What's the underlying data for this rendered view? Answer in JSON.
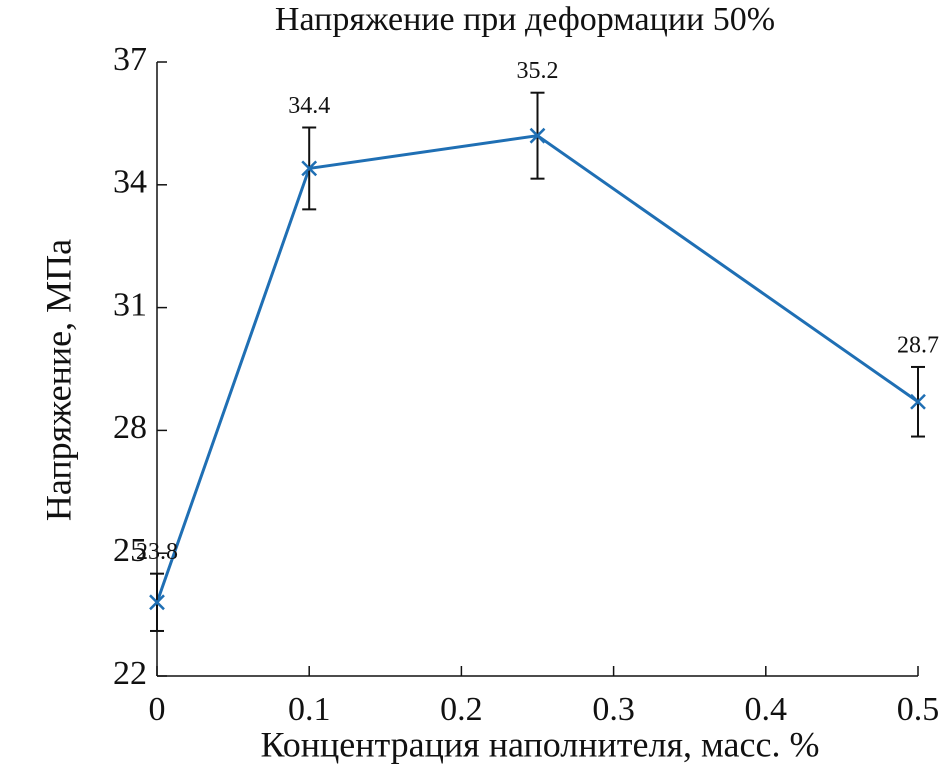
{
  "chart_data": {
    "type": "line",
    "title": "Напряжение при деформации 50%",
    "x_label": "Концентрация наполнителя, масс. %",
    "y_label": "Напряжение, МПа",
    "x": [
      0,
      0.1,
      0.25,
      0.5
    ],
    "values": [
      23.8,
      34.4,
      35.2,
      28.7
    ],
    "errors": [
      0.7,
      1.0,
      1.05,
      0.85
    ],
    "color": "#1f6fb4",
    "xlim": [
      0,
      0.5
    ],
    "xticks": [
      0,
      0.1,
      0.2,
      0.3,
      0.4,
      0.5
    ],
    "ylim": [
      22,
      37
    ],
    "yticks": [
      22,
      25,
      28,
      31,
      34,
      37
    ]
  }
}
